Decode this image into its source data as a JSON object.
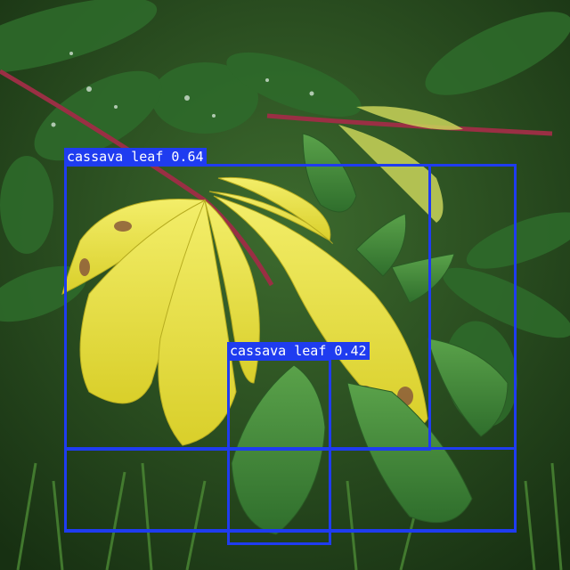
{
  "image": {
    "subject": "cassava plant leaves",
    "colors": {
      "box": "#1f3cf0",
      "label_text": "#ffffff",
      "yellow_leaf": "#e6df3a",
      "green_leaf": "#3f8a3a",
      "background": "#234a20"
    }
  },
  "detections": [
    {
      "label": "cassava leaf 0.64",
      "class": "cassava leaf",
      "score": 0.64
    },
    {
      "label": "cassava leaf 0.42",
      "class": "cassava leaf",
      "score": 0.42
    }
  ]
}
